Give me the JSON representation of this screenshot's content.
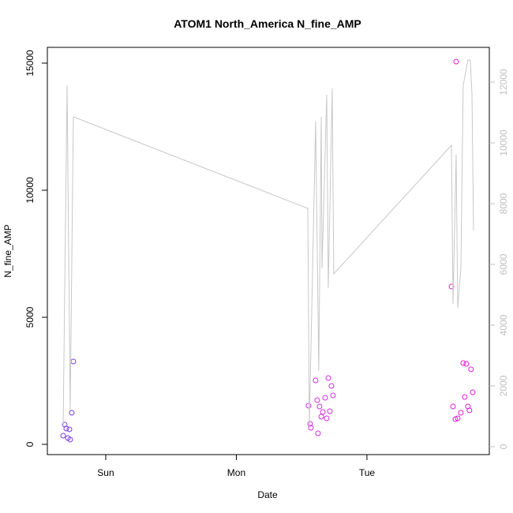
{
  "chart_data": {
    "type": "scatter",
    "title": "ATOM1 North_America N_fine_AMP",
    "xlabel": "Date",
    "ylabel": "N_fine_AMP",
    "xlim": [
      -0.447,
      2.937
    ],
    "xticks": [
      {
        "value": 0,
        "label": "Sun"
      },
      {
        "value": 1,
        "label": "Mon"
      },
      {
        "value": 2,
        "label": "Tue"
      }
    ],
    "ylim": [
      -404,
      15621
    ],
    "yticks": [
      0,
      5000,
      10000,
      15000
    ],
    "y2lim": [
      -260,
      13143
    ],
    "y2ticks": [
      0,
      2000,
      4000,
      6000,
      8000,
      10000,
      12000
    ],
    "y2color": "#bfbfbf",
    "series": [
      {
        "type": "scatter",
        "x": [
          -0.326,
          -0.314,
          -0.302,
          -0.29,
          -0.278,
          -0.272,
          -0.26,
          -0.248,
          1.553,
          1.565,
          1.571,
          1.607,
          1.619,
          1.625,
          1.637,
          1.65,
          1.662,
          1.68,
          1.692,
          1.704,
          1.716,
          1.728,
          1.74,
          2.647,
          2.659,
          2.677,
          2.695,
          2.719,
          2.737,
          2.749,
          2.761,
          2.773,
          2.785,
          2.797,
          2.81,
          2.683
        ],
        "values": [
          342,
          776,
          621,
          248,
          590,
          186,
          1242,
          3261,
          1522,
          807,
          652,
          2516,
          1739,
          435,
          1491,
          1087,
          1273,
          1832,
          1025,
          2609,
          1304,
          2298,
          1925,
          6211,
          1491,
          994,
          1025,
          1242,
          3199,
          1863,
          3168,
          1491,
          1335,
          2950,
          2050,
          15062
        ],
        "colors": [
          "#7a3fe6",
          "#7a3fe6",
          "#7a3fe6",
          "#7a3fe6",
          "#7a3fe6",
          "#7a3fe6",
          "#7a3fe6",
          "#7a3fe6",
          "#d02ee0",
          "#d02ee0",
          "#d02ee0",
          "#d02ee0",
          "#d02ee0",
          "#d02ee0",
          "#d02ee0",
          "#d02ee0",
          "#d02ee0",
          "#d02ee0",
          "#d02ee0",
          "#d02ee0",
          "#d02ee0",
          "#d02ee0",
          "#d02ee0",
          "#e020d8",
          "#e020d8",
          "#e020d8",
          "#e020d8",
          "#e020d8",
          "#e020d8",
          "#e020d8",
          "#e020d8",
          "#e020d8",
          "#e020d8",
          "#e020d8",
          "#e020d8",
          "#e020d8"
        ]
      },
      {
        "type": "line",
        "axis": "y2",
        "color": "#c8c8c8",
        "x": [
          -0.326,
          -0.296,
          -0.272,
          -0.248,
          1.547,
          1.559,
          1.607,
          1.631,
          1.65,
          1.656,
          1.692,
          1.704,
          1.734,
          1.746,
          2.647,
          2.659,
          2.683,
          2.695,
          2.719,
          2.737,
          2.773,
          2.791,
          2.804,
          2.816
        ],
        "values": [
          675,
          11896,
          1195,
          10857,
          7844,
          675,
          10701,
          2494,
          10857,
          5870,
          11584,
          5221,
          11792,
          5688,
          9922,
          4701,
          9610,
          4571,
          5870,
          11896,
          12727,
          12727,
          11636,
          7117
        ]
      }
    ]
  }
}
